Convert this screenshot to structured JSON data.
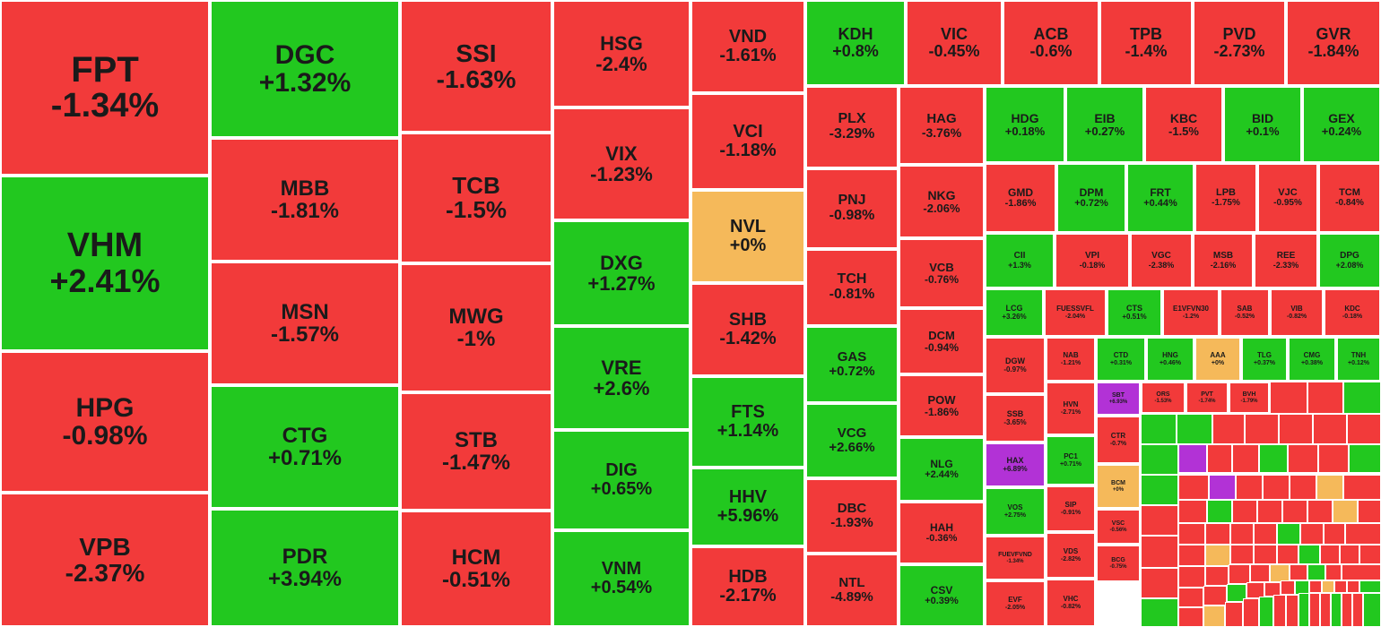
{
  "colors": {
    "down": "#f23a3a",
    "up": "#22c81f",
    "flat": "#f5b95a",
    "ceiling": "#b232d6",
    "border": "#ffffff",
    "text": "#1a1a1a"
  },
  "chart_data": {
    "type": "heatmap",
    "title": "",
    "tiles": [
      {
        "symbol": "FPT",
        "change": "-1.34%",
        "value": -1.34
      },
      {
        "symbol": "VHM",
        "change": "+2.41%",
        "value": 2.41
      },
      {
        "symbol": "HPG",
        "change": "-0.98%",
        "value": -0.98
      },
      {
        "symbol": "VPB",
        "change": "-2.37%",
        "value": -2.37
      },
      {
        "symbol": "DGC",
        "change": "+1.32%",
        "value": 1.32
      },
      {
        "symbol": "MBB",
        "change": "-1.81%",
        "value": -1.81
      },
      {
        "symbol": "MSN",
        "change": "-1.57%",
        "value": -1.57
      },
      {
        "symbol": "CTG",
        "change": "+0.71%",
        "value": 0.71
      },
      {
        "symbol": "PDR",
        "change": "+3.94%",
        "value": 3.94
      },
      {
        "symbol": "SSI",
        "change": "-1.63%",
        "value": -1.63
      },
      {
        "symbol": "TCB",
        "change": "-1.5%",
        "value": -1.5
      },
      {
        "symbol": "MWG",
        "change": "-1%",
        "value": -1
      },
      {
        "symbol": "STB",
        "change": "-1.47%",
        "value": -1.47
      },
      {
        "symbol": "HCM",
        "change": "-0.51%",
        "value": -0.51
      },
      {
        "symbol": "HSG",
        "change": "-2.4%",
        "value": -2.4
      },
      {
        "symbol": "VIX",
        "change": "-1.23%",
        "value": -1.23
      },
      {
        "symbol": "DXG",
        "change": "+1.27%",
        "value": 1.27
      },
      {
        "symbol": "VRE",
        "change": "+2.6%",
        "value": 2.6
      },
      {
        "symbol": "DIG",
        "change": "+0.65%",
        "value": 0.65
      },
      {
        "symbol": "VNM",
        "change": "+0.54%",
        "value": 0.54
      },
      {
        "symbol": "VND",
        "change": "-1.61%",
        "value": -1.61
      },
      {
        "symbol": "VCI",
        "change": "-1.18%",
        "value": -1.18
      },
      {
        "symbol": "NVL",
        "change": "+0%",
        "value": 0
      },
      {
        "symbol": "SHB",
        "change": "-1.42%",
        "value": -1.42
      },
      {
        "symbol": "FTS",
        "change": "+1.14%",
        "value": 1.14
      },
      {
        "symbol": "HHV",
        "change": "+5.96%",
        "value": 5.96
      },
      {
        "symbol": "HDB",
        "change": "-2.17%",
        "value": -2.17
      },
      {
        "symbol": "KDH",
        "change": "+0.8%",
        "value": 0.8
      },
      {
        "symbol": "VIC",
        "change": "-0.45%",
        "value": -0.45
      },
      {
        "symbol": "ACB",
        "change": "-0.6%",
        "value": -0.6
      },
      {
        "symbol": "TPB",
        "change": "-1.4%",
        "value": -1.4
      },
      {
        "symbol": "PVD",
        "change": "-2.73%",
        "value": -2.73
      },
      {
        "symbol": "GVR",
        "change": "-1.84%",
        "value": -1.84
      },
      {
        "symbol": "PLX",
        "change": "-3.29%",
        "value": -3.29
      },
      {
        "symbol": "PNJ",
        "change": "-0.98%",
        "value": -0.98
      },
      {
        "symbol": "TCH",
        "change": "-0.81%",
        "value": -0.81
      },
      {
        "symbol": "GAS",
        "change": "+0.72%",
        "value": 0.72
      },
      {
        "symbol": "VCG",
        "change": "+2.66%",
        "value": 2.66
      },
      {
        "symbol": "DBC",
        "change": "-1.93%",
        "value": -1.93
      },
      {
        "symbol": "NTL",
        "change": "-4.89%",
        "value": -4.89
      },
      {
        "symbol": "HAG",
        "change": "-3.76%",
        "value": -3.76
      },
      {
        "symbol": "NKG",
        "change": "-2.06%",
        "value": -2.06
      },
      {
        "symbol": "VCB",
        "change": "-0.76%",
        "value": -0.76
      },
      {
        "symbol": "DCM",
        "change": "-0.94%",
        "value": -0.94
      },
      {
        "symbol": "POW",
        "change": "-1.86%",
        "value": -1.86
      },
      {
        "symbol": "NLG",
        "change": "+2.44%",
        "value": 2.44
      },
      {
        "symbol": "HAH",
        "change": "-0.36%",
        "value": -0.36
      },
      {
        "symbol": "CSV",
        "change": "+0.39%",
        "value": 0.39
      },
      {
        "symbol": "HDG",
        "change": "+0.18%",
        "value": 0.18
      },
      {
        "symbol": "EIB",
        "change": "+0.27%",
        "value": 0.27
      },
      {
        "symbol": "KBC",
        "change": "-1.5%",
        "value": -1.5
      },
      {
        "symbol": "BID",
        "change": "+0.1%",
        "value": 0.1
      },
      {
        "symbol": "GEX",
        "change": "+0.24%",
        "value": 0.24
      },
      {
        "symbol": "GMD",
        "change": "-1.86%",
        "value": -1.86
      },
      {
        "symbol": "DPM",
        "change": "+0.72%",
        "value": 0.72
      },
      {
        "symbol": "FRT",
        "change": "+0.44%",
        "value": 0.44
      },
      {
        "symbol": "LPB",
        "change": "-1.75%",
        "value": -1.75
      },
      {
        "symbol": "VJC",
        "change": "-0.95%",
        "value": -0.95
      },
      {
        "symbol": "TCM",
        "change": "-0.84%",
        "value": -0.84
      },
      {
        "symbol": "CII",
        "change": "+1.3%",
        "value": 1.3
      },
      {
        "symbol": "VPI",
        "change": "-0.18%",
        "value": -0.18
      },
      {
        "symbol": "VGC",
        "change": "-2.38%",
        "value": -2.38
      },
      {
        "symbol": "MSB",
        "change": "-2.16%",
        "value": -2.16
      },
      {
        "symbol": "REE",
        "change": "-2.33%",
        "value": -2.33
      },
      {
        "symbol": "DPG",
        "change": "+2.08%",
        "value": 2.08
      },
      {
        "symbol": "LCG",
        "change": "+3.26%",
        "value": 3.26
      },
      {
        "symbol": "FUESSVFL",
        "change": "-2.04%",
        "value": -2.04
      },
      {
        "symbol": "CTS",
        "change": "+0.51%",
        "value": 0.51
      },
      {
        "symbol": "E1VFVN30",
        "change": "-1.2%",
        "value": -1.2
      },
      {
        "symbol": "SAB",
        "change": "-0.52%",
        "value": -0.52
      },
      {
        "symbol": "VIB",
        "change": "-0.82%",
        "value": -0.82
      },
      {
        "symbol": "KDC",
        "change": "-0.18%",
        "value": -0.18
      },
      {
        "symbol": "DGW",
        "change": "-0.97%",
        "value": -0.97
      },
      {
        "symbol": "NAB",
        "change": "-1.21%",
        "value": -1.21
      },
      {
        "symbol": "CTD",
        "change": "+0.31%",
        "value": 0.31
      },
      {
        "symbol": "HNG",
        "change": "+0.46%",
        "value": 0.46
      },
      {
        "symbol": "AAA",
        "change": "+0%",
        "value": 0
      },
      {
        "symbol": "TLG",
        "change": "+0.37%",
        "value": 0.37
      },
      {
        "symbol": "CMG",
        "change": "+0.38%",
        "value": 0.38
      },
      {
        "symbol": "TNH",
        "change": "+0.12%",
        "value": 0.12
      },
      {
        "symbol": "SSB",
        "change": "-3.65%",
        "value": -3.65
      },
      {
        "symbol": "HVN",
        "change": "-2.71%",
        "value": -2.71
      },
      {
        "symbol": "SBT",
        "change": "+6.93%",
        "value": 6.93
      },
      {
        "symbol": "ORS",
        "change": "-1.53%",
        "value": -1.53
      },
      {
        "symbol": "PVT",
        "change": "-1.74%",
        "value": -1.74
      },
      {
        "symbol": "BVH",
        "change": "-1.79%",
        "value": -1.79
      },
      {
        "symbol": "HAX",
        "change": "+6.89%",
        "value": 6.89
      },
      {
        "symbol": "PC1",
        "change": "+0.71%",
        "value": 0.71
      },
      {
        "symbol": "CTR",
        "change": "-0.7%",
        "value": -0.7
      },
      {
        "symbol": "VOS",
        "change": "+2.75%",
        "value": 2.75
      },
      {
        "symbol": "SIP",
        "change": "-0.91%",
        "value": -0.91
      },
      {
        "symbol": "BCM",
        "change": "+0%",
        "value": 0
      },
      {
        "symbol": "FUEVFVND",
        "change": "-1.34%",
        "value": -1.34
      },
      {
        "symbol": "VDS",
        "change": "-2.82%",
        "value": -2.82
      },
      {
        "symbol": "VSC",
        "change": "-0.56%",
        "value": -0.56
      },
      {
        "symbol": "BCG",
        "change": "-0.75%",
        "value": -0.75
      },
      {
        "symbol": "EVF",
        "change": "-2.05%",
        "value": -2.05
      },
      {
        "symbol": "VHC",
        "change": "-0.82%",
        "value": -0.82
      }
    ]
  }
}
